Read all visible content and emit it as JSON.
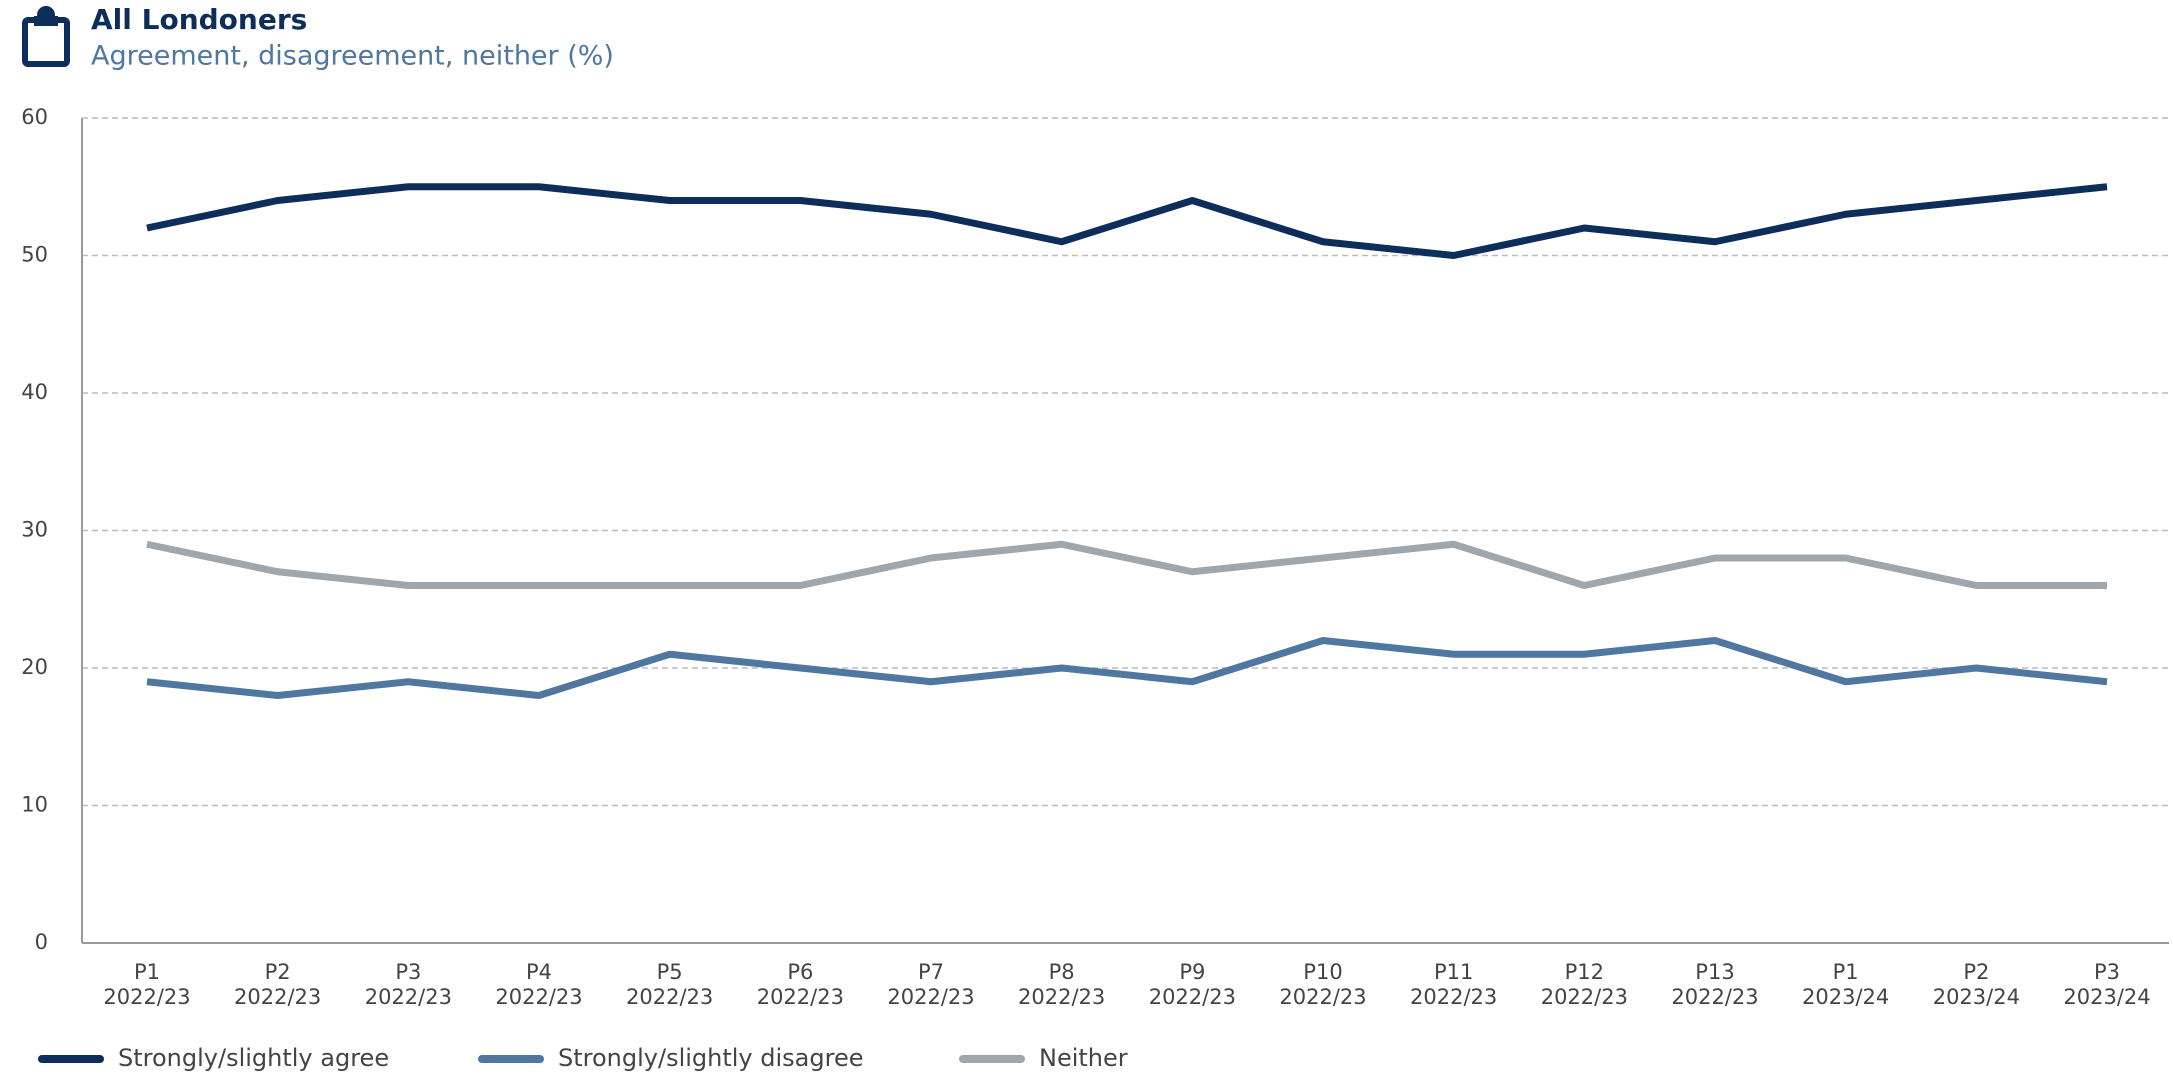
{
  "chart_data": {
    "type": "line",
    "title": "All Londoners",
    "subtitle": "Agreement, disagreement, neither (%)",
    "categories": [
      [
        "P1",
        "2022/23"
      ],
      [
        "P2",
        "2022/23"
      ],
      [
        "P3",
        "2022/23"
      ],
      [
        "P4",
        "2022/23"
      ],
      [
        "P5",
        "2022/23"
      ],
      [
        "P6",
        "2022/23"
      ],
      [
        "P7",
        "2022/23"
      ],
      [
        "P8",
        "2022/23"
      ],
      [
        "P9",
        "2022/23"
      ],
      [
        "P10",
        "2022/23"
      ],
      [
        "P11",
        "2022/23"
      ],
      [
        "P12",
        "2022/23"
      ],
      [
        "P13",
        "2022/23"
      ],
      [
        "P1",
        "2023/24"
      ],
      [
        "P2",
        "2023/24"
      ],
      [
        "P3",
        "2023/24"
      ]
    ],
    "series": [
      {
        "name": "Strongly/slightly agree",
        "color": "#0d2d5a",
        "values": [
          52,
          54,
          55,
          55,
          54,
          54,
          53,
          51,
          54,
          51,
          50,
          52,
          51,
          53,
          54,
          55
        ]
      },
      {
        "name": "Strongly/slightly disagree",
        "color": "#4f77a0",
        "values": [
          19,
          18,
          19,
          18,
          21,
          20,
          19,
          20,
          19,
          22,
          21,
          21,
          22,
          19,
          20,
          19
        ]
      },
      {
        "name": "Neither",
        "color": "#9ea7ae",
        "values": [
          29,
          27,
          26,
          26,
          26,
          26,
          28,
          29,
          27,
          28,
          29,
          26,
          28,
          28,
          26,
          26
        ]
      }
    ],
    "ylim": [
      0,
      60
    ],
    "yticks": [
      0,
      10,
      20,
      30,
      40,
      50,
      60
    ],
    "grid": true,
    "legend": "bottom"
  }
}
